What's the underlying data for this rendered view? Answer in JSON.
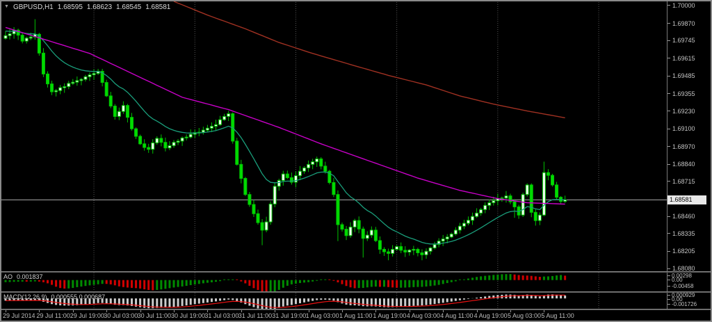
{
  "window": {
    "dropdown_icon": "▼"
  },
  "chart_data": {
    "type": "candlestick",
    "symbol": "GBPUSD",
    "timeframe": "H1",
    "title_text": "GBPUSD,H1",
    "ohlc_display": {
      "open": "1.68595",
      "high": "1.68623",
      "low": "1.68545",
      "close": "1.68581"
    },
    "bid_price": 1.68581,
    "bid_label": "1.68581",
    "y_axis": {
      "ticks": [
        "1.70000",
        "1.69870",
        "1.69745",
        "1.69615",
        "1.69485",
        "1.69355",
        "1.69230",
        "1.69100",
        "1.68970",
        "1.68840",
        "1.68715",
        "1.68460",
        "1.68335",
        "1.68205",
        "1.68080"
      ]
    },
    "x_axis": {
      "labels": [
        {
          "text": "29 Jul 2014",
          "i": 0
        },
        {
          "text": "29 Jul 11:00",
          "i": 8
        },
        {
          "text": "29 Jul 19:00",
          "i": 16
        },
        {
          "text": "30 Jul 03:00",
          "i": 24
        },
        {
          "text": "30 Jul 11:00",
          "i": 32
        },
        {
          "text": "30 Jul 19:00",
          "i": 40
        },
        {
          "text": "31 Jul 03:00",
          "i": 48
        },
        {
          "text": "31 Jul 11:00",
          "i": 56
        },
        {
          "text": "31 Jul 19:00",
          "i": 64
        },
        {
          "text": "1 Aug 03:00",
          "i": 72
        },
        {
          "text": "1 Aug 11:00",
          "i": 80
        },
        {
          "text": "1 Aug 19:00",
          "i": 88
        },
        {
          "text": "4 Aug 03:00",
          "i": 96
        },
        {
          "text": "4 Aug 11:00",
          "i": 104
        },
        {
          "text": "4 Aug 19:00",
          "i": 112
        },
        {
          "text": "5 Aug 03:00",
          "i": 120
        },
        {
          "text": "5 Aug 11:00",
          "i": 128
        }
      ]
    },
    "grid_day_lines_i": [
      21,
      45,
      69,
      93,
      117,
      141
    ],
    "candles": {
      "count": 134,
      "close_anchors": [
        [
          0,
          1.6978
        ],
        [
          2,
          1.6982
        ],
        [
          4,
          1.6974
        ],
        [
          6,
          1.6977
        ],
        [
          7,
          1.6979
        ],
        [
          9,
          1.695
        ],
        [
          11,
          1.6937
        ],
        [
          13,
          1.694
        ],
        [
          16,
          1.6944
        ],
        [
          19,
          1.6948
        ],
        [
          22,
          1.6952
        ],
        [
          24,
          1.6934
        ],
        [
          26,
          1.6919
        ],
        [
          28,
          1.6927
        ],
        [
          30,
          1.691
        ],
        [
          32,
          1.6899
        ],
        [
          34,
          1.6895
        ],
        [
          36,
          1.6903
        ],
        [
          38,
          1.6896
        ],
        [
          41,
          1.6901
        ],
        [
          44,
          1.6906
        ],
        [
          47,
          1.6909
        ],
        [
          50,
          1.6913
        ],
        [
          52,
          1.6919
        ],
        [
          53,
          1.6921
        ],
        [
          54,
          1.6901
        ],
        [
          55,
          1.6884
        ],
        [
          57,
          1.6862
        ],
        [
          59,
          1.6848
        ],
        [
          61,
          1.6836
        ],
        [
          62,
          1.6842
        ],
        [
          64,
          1.6868
        ],
        [
          66,
          1.6877
        ],
        [
          68,
          1.6871
        ],
        [
          70,
          1.6879
        ],
        [
          72,
          1.6884
        ],
        [
          74,
          1.6888
        ],
        [
          76,
          1.6879
        ],
        [
          78,
          1.6862
        ],
        [
          79,
          1.684
        ],
        [
          81,
          1.6832
        ],
        [
          83,
          1.6843
        ],
        [
          85,
          1.683
        ],
        [
          87,
          1.6836
        ],
        [
          89,
          1.6822
        ],
        [
          91,
          1.6819
        ],
        [
          93,
          1.6824
        ],
        [
          95,
          1.682
        ],
        [
          97,
          1.6822
        ],
        [
          99,
          1.6818
        ],
        [
          101,
          1.6823
        ],
        [
          103,
          1.6828
        ],
        [
          105,
          1.6831
        ],
        [
          107,
          1.6836
        ],
        [
          109,
          1.6841
        ],
        [
          111,
          1.6846
        ],
        [
          113,
          1.6851
        ],
        [
          115,
          1.6856
        ],
        [
          117,
          1.6859
        ],
        [
          119,
          1.6861
        ],
        [
          121,
          1.6853
        ],
        [
          122,
          1.6847
        ],
        [
          123,
          1.6862
        ],
        [
          124,
          1.6869
        ],
        [
          125,
          1.6849
        ],
        [
          126,
          1.6843
        ],
        [
          127,
          1.6847
        ],
        [
          128,
          1.6878
        ],
        [
          129,
          1.6876
        ],
        [
          130,
          1.6869
        ],
        [
          131,
          1.686
        ],
        [
          132,
          1.6857
        ],
        [
          133,
          1.68581
        ]
      ],
      "wick_overrides": {
        "7": {
          "h": 1.699
        },
        "61": {
          "l": 1.6825
        },
        "79": {
          "l": 1.6828
        },
        "85": {
          "l": 1.6816
        },
        "91": {
          "l": 1.6814
        },
        "99": {
          "l": 1.6814
        },
        "121": {
          "l": 1.6845
        },
        "128": {
          "h": 1.6886
        }
      },
      "bull_fill": "#f0fff0",
      "bear_fill": "#00dc00",
      "outline": "#00c400"
    },
    "moving_averages": {
      "fast": {
        "style": "ema-computed",
        "period": 16,
        "color": "#1a9e7b"
      },
      "medium": {
        "color": "#c800c8",
        "anchors": [
          [
            0,
            1.6984
          ],
          [
            20,
            1.6965
          ],
          [
            42,
            1.6933
          ],
          [
            53,
            1.6924
          ],
          [
            65,
            1.6911
          ],
          [
            75,
            1.6899
          ],
          [
            86,
            1.6887
          ],
          [
            98,
            1.6874
          ],
          [
            108,
            1.6865
          ],
          [
            117,
            1.6859
          ],
          [
            124,
            1.6856
          ],
          [
            133,
            1.6855
          ]
        ]
      },
      "slow": {
        "color": "#a03122",
        "anchors": [
          [
            40,
            1.7003
          ],
          [
            48,
            1.6993
          ],
          [
            57,
            1.6983
          ],
          [
            65,
            1.6973
          ],
          [
            73,
            1.6965
          ],
          [
            83,
            1.6956
          ],
          [
            91,
            1.6949
          ],
          [
            100,
            1.6942
          ],
          [
            108,
            1.6934
          ],
          [
            116,
            1.6928
          ],
          [
            124,
            1.6923
          ],
          [
            133,
            1.6918
          ]
        ]
      }
    },
    "indicators": [
      {
        "name": "AO",
        "label": "AO",
        "value": "0.001837",
        "scale": [
          "0.00298",
          "0.00",
          "-0.00458"
        ],
        "up_color": "#008b00",
        "down_color": "#d00000"
      },
      {
        "name": "MACD",
        "label": "MACD(12,26,9)",
        "values": "0.000555 0.000687",
        "scale": [
          "0.000929",
          "0.00",
          "-0.001726"
        ],
        "hist_color": "#cccccc",
        "signal_color": "#ee1111"
      }
    ],
    "colors": {
      "background": "#000000",
      "grid": "#565656",
      "bid_line": "#aaaaaa",
      "axis_text": "#c4c4c4"
    }
  }
}
